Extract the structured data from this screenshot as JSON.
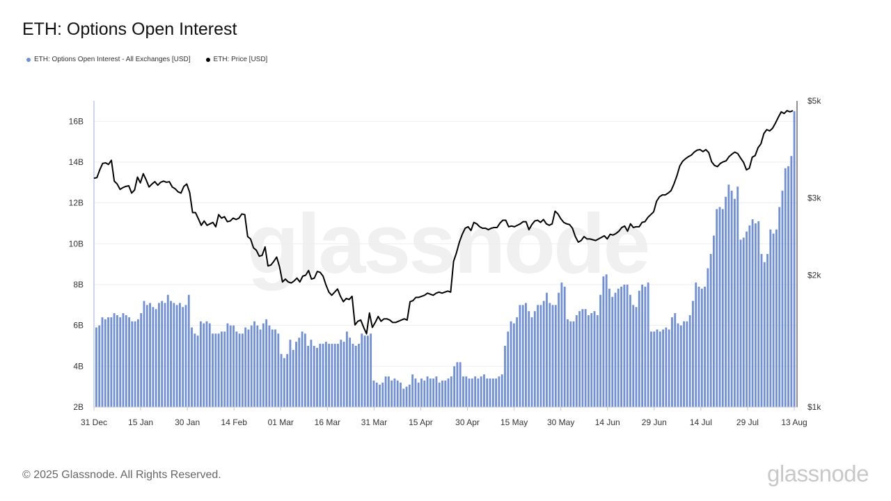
{
  "title": "ETH: Options Open Interest",
  "watermark_text": "glassnode",
  "footer": {
    "copyright": "© 2025 Glassnode. All Rights Reserved.",
    "brand": "glassnode"
  },
  "colors": {
    "bar": "#6f8fdc",
    "line": "#000000",
    "grid": "#eeeeee",
    "axis": "#b8c8ee"
  },
  "chart_data": {
    "type": "bar+line",
    "x_ticks": [
      "31 Dec",
      "15 Jan",
      "30 Jan",
      "14 Feb",
      "01 Mar",
      "16 Mar",
      "31 Mar",
      "15 Apr",
      "30 Apr",
      "15 May",
      "30 May",
      "14 Jun",
      "29 Jun",
      "14 Jul",
      "29 Jul",
      "13 Aug"
    ],
    "x_start": "2024-12-31",
    "x_end": "2025-08-13",
    "left_axis": {
      "ticks": [
        "2B",
        "4B",
        "6B",
        "8B",
        "10B",
        "12B",
        "14B",
        "16B"
      ],
      "ylim": [
        2,
        17
      ]
    },
    "right_axis": {
      "ticks": [
        "$1k",
        "$2k",
        "$3k",
        "$5k"
      ],
      "scale": "log",
      "ylim": [
        1000,
        5000
      ]
    },
    "legend": [
      {
        "label": "ETH: Options Open Interest - All Exchanges [USD]",
        "color": "#6f8fdc"
      },
      {
        "label": "ETH: Price [USD]",
        "color": "#000000"
      }
    ],
    "series": [
      {
        "name": "ETH: Options Open Interest - All Exchanges [USD]",
        "type": "bar",
        "axis": "left",
        "values": [
          5.9,
          6.0,
          6.4,
          6.3,
          6.4,
          6.4,
          6.6,
          6.5,
          6.4,
          6.6,
          6.5,
          6.4,
          6.2,
          6.2,
          6.3,
          6.6,
          7.2,
          7.0,
          7.1,
          6.9,
          6.8,
          7.1,
          7.2,
          7.1,
          7.5,
          7.2,
          7.1,
          7.0,
          7.1,
          6.9,
          7.0,
          7.5,
          5.9,
          5.6,
          5.5,
          6.2,
          6.1,
          6.2,
          6.1,
          5.6,
          5.6,
          5.6,
          5.7,
          5.7,
          6.1,
          6.0,
          6.0,
          5.7,
          5.6,
          5.6,
          5.9,
          5.8,
          6.0,
          6.2,
          6.0,
          5.8,
          6.1,
          6.3,
          6.0,
          5.8,
          5.8,
          5.6,
          4.6,
          4.4,
          4.6,
          5.3,
          4.8,
          5.2,
          5.4,
          5.7,
          5.6,
          5.0,
          5.3,
          5.0,
          4.9,
          5.1,
          5.1,
          5.2,
          5.1,
          5.1,
          5.1,
          5.1,
          5.3,
          5.2,
          5.7,
          5.4,
          5.1,
          5.0,
          5.1,
          5.6,
          5.5,
          5.5,
          5.6,
          3.3,
          3.2,
          3.1,
          3.2,
          3.5,
          3.5,
          3.3,
          3.4,
          3.3,
          3.2,
          2.9,
          3.0,
          3.1,
          3.6,
          3.4,
          3.2,
          3.4,
          3.3,
          3.5,
          3.4,
          3.4,
          3.5,
          3.2,
          3.3,
          3.3,
          3.4,
          3.5,
          4.0,
          4.2,
          4.2,
          3.5,
          3.5,
          3.4,
          3.4,
          3.5,
          3.4,
          3.5,
          3.6,
          3.4,
          3.4,
          3.4,
          3.4,
          3.5,
          3.6,
          5.0,
          5.7,
          6.2,
          6.1,
          6.4,
          7.0,
          7.0,
          7.1,
          6.7,
          6.4,
          6.7,
          7.0,
          7.0,
          7.2,
          7.6,
          7.1,
          7.0,
          7.0,
          7.6,
          8.1,
          7.9,
          6.3,
          6.2,
          6.2,
          6.5,
          6.7,
          6.8,
          6.8,
          6.5,
          6.6,
          6.7,
          6.5,
          7.5,
          8.4,
          8.5,
          7.8,
          7.4,
          7.6,
          7.8,
          7.9,
          8.0,
          8.0,
          7.5,
          7.0,
          6.9,
          7.7,
          8.0,
          7.9,
          8.1,
          5.7,
          5.7,
          5.8,
          5.7,
          5.8,
          5.9,
          5.8,
          6.4,
          6.6,
          6.1,
          6.0,
          6.2,
          6.2,
          6.5,
          7.2,
          8.1,
          7.9,
          7.8,
          7.9,
          8.8,
          9.5,
          10.4,
          11.7,
          11.8,
          11.7,
          12.3,
          12.9,
          12.6,
          12.2,
          12.8,
          10.2,
          10.3,
          10.6,
          10.9,
          11.2,
          11.0,
          11.1,
          9.5,
          9.1,
          9.5,
          10.7,
          10.5,
          10.7,
          11.8,
          12.6,
          13.7,
          13.8,
          14.3,
          16.5
        ]
      },
      {
        "name": "ETH: Price [USD]",
        "type": "line",
        "axis": "right",
        "values": [
          3330,
          3340,
          3480,
          3600,
          3610,
          3580,
          3660,
          3280,
          3230,
          3140,
          3170,
          3190,
          3200,
          3080,
          3130,
          3350,
          3250,
          3410,
          3300,
          3180,
          3230,
          3270,
          3210,
          3260,
          3280,
          3260,
          3270,
          3180,
          3150,
          3100,
          3080,
          3190,
          3230,
          3090,
          2780,
          2780,
          2690,
          2600,
          2660,
          2600,
          2620,
          2640,
          2580,
          2750,
          2700,
          2720,
          2650,
          2660,
          2700,
          2680,
          2700,
          2760,
          2750,
          2450,
          2420,
          2310,
          2280,
          2210,
          2220,
          2320,
          2100,
          2110,
          2150,
          2200,
          2090,
          1930,
          1960,
          1930,
          1920,
          1940,
          1970,
          1930,
          1990,
          2000,
          2050,
          1960,
          1970,
          2040,
          2030,
          1990,
          1900,
          1830,
          1800,
          1830,
          1860,
          1790,
          1740,
          1770,
          1760,
          1790,
          1540,
          1570,
          1580,
          1520,
          1470,
          1640,
          1520,
          1560,
          1610,
          1570,
          1590,
          1590,
          1580,
          1560,
          1560,
          1570,
          1580,
          1590,
          1580,
          1740,
          1750,
          1780,
          1780,
          1790,
          1800,
          1820,
          1810,
          1800,
          1820,
          1830,
          1820,
          1830,
          1840,
          1830,
          2150,
          2250,
          2380,
          2480,
          2560,
          2580,
          2530,
          2640,
          2620,
          2580,
          2560,
          2560,
          2540,
          2560,
          2570,
          2570,
          2630,
          2670,
          2670,
          2580,
          2590,
          2580,
          2600,
          2620,
          2650,
          2650,
          2540,
          2610,
          2660,
          2670,
          2640,
          2680,
          2620,
          2600,
          2620,
          2800,
          2760,
          2690,
          2640,
          2620,
          2610,
          2560,
          2450,
          2380,
          2400,
          2450,
          2420,
          2420,
          2410,
          2400,
          2420,
          2440,
          2460,
          2420,
          2480,
          2470,
          2490,
          2520,
          2570,
          2590,
          2520,
          2620,
          2570,
          2580,
          2580,
          2640,
          2650,
          2710,
          2750,
          2790,
          2950,
          3020,
          3050,
          3050,
          3080,
          3120,
          3230,
          3370,
          3550,
          3640,
          3690,
          3730,
          3760,
          3820,
          3860,
          3870,
          3830,
          3870,
          3810,
          3630,
          3560,
          3540,
          3600,
          3630,
          3650,
          3730,
          3780,
          3820,
          3790,
          3700,
          3620,
          3480,
          3510,
          3720,
          3750,
          3910,
          3990,
          4210,
          4300,
          4270,
          4330,
          4450,
          4590,
          4720,
          4680,
          4750,
          4720,
          4750
        ]
      }
    ]
  }
}
